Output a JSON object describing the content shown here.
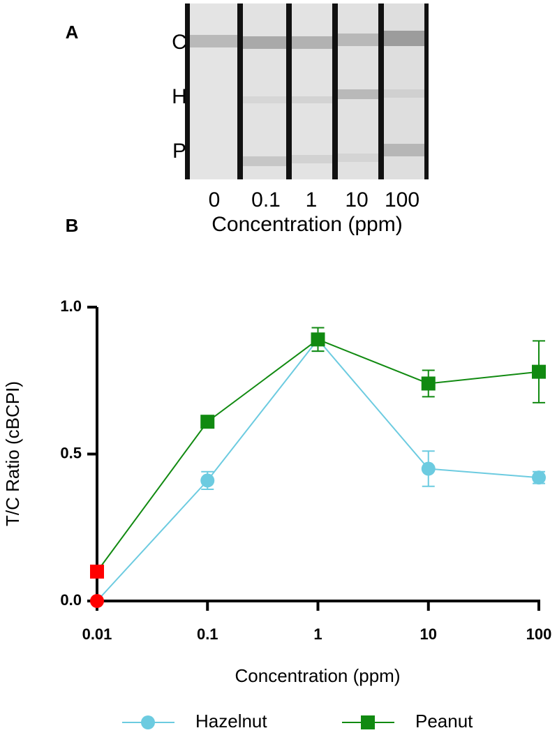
{
  "panel_a": {
    "label": "A",
    "band_labels": [
      "C",
      "H",
      "P"
    ],
    "lane_labels": [
      "0",
      "0.1",
      "1",
      "10",
      "100"
    ],
    "x_label": "Concentration (ppm)"
  },
  "chart_data": {
    "type": "line",
    "panel_label": "B",
    "x_label": "Concentration (ppm)",
    "y_label": "T/C Ratio (cBCPI)",
    "x": [
      0.01,
      0.1,
      1,
      10,
      100
    ],
    "xlim": [
      0.01,
      100
    ],
    "xticks": [
      0.01,
      0.1,
      1,
      10,
      100
    ],
    "xscale": "log",
    "ylim": [
      0,
      1
    ],
    "yticks": [
      {
        "value": 0,
        "label": "0.0"
      },
      {
        "value": 0.5,
        "label": "0.5"
      },
      {
        "value": 1,
        "label": "1.0"
      }
    ],
    "legend": "bottom",
    "series": [
      {
        "name": "Hazelnut",
        "color": "#6ccbe0",
        "marker": "circle",
        "marker_colors": [
          "#ff0000",
          null,
          null,
          null,
          null
        ],
        "values": [
          0,
          0.41,
          0.89,
          0.45,
          0.42
        ],
        "errors": [
          null,
          0.03,
          0.04,
          0.06,
          0.02
        ]
      },
      {
        "name": "Peanut",
        "color": "#118a11",
        "marker": "square",
        "marker_colors": [
          "#ff0000",
          null,
          null,
          null,
          null
        ],
        "values": [
          0.1,
          0.61,
          0.89,
          0.74,
          0.78
        ],
        "errors": [
          null,
          null,
          0.04,
          0.045,
          0.105
        ]
      }
    ]
  }
}
